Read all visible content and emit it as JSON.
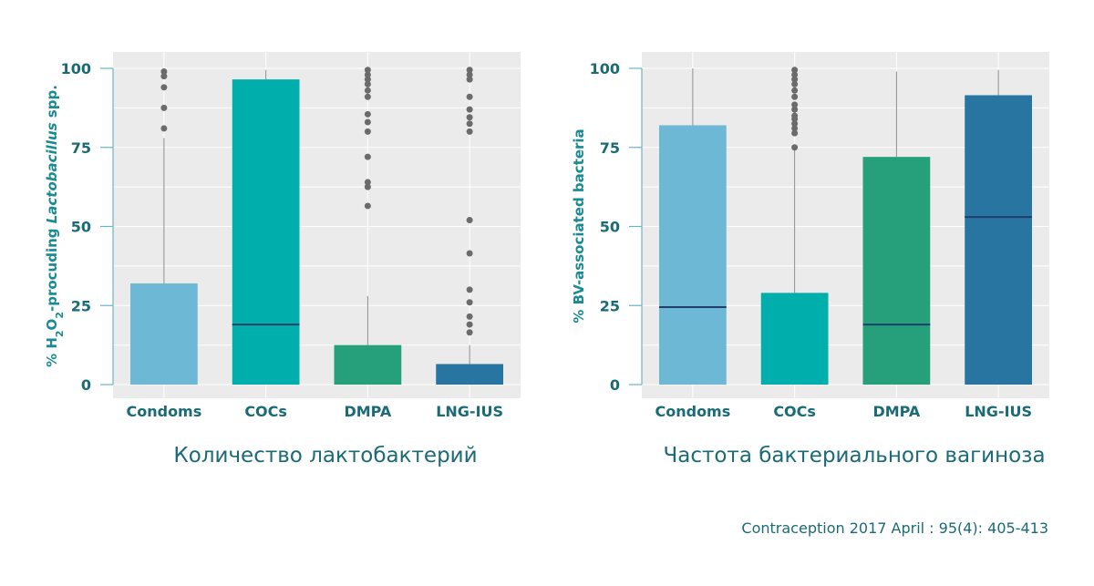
{
  "chart_data": [
    {
      "type": "box",
      "caption": "Количество лактобактерий",
      "ylabel_parts": {
        "prefix": "% H",
        "sub1": "2",
        "mid": "O",
        "sub2": "2",
        "rest": "-procuding ",
        "italic": "Lactobacillus",
        "suffix": " spp."
      },
      "ylim": [
        0,
        100
      ],
      "yticks": [
        0,
        25,
        50,
        75,
        100
      ],
      "grid": true,
      "categories": [
        "Condoms",
        "COCs",
        "DMPA",
        "LNG-IUS"
      ],
      "colors": [
        "#6db8d4",
        "#00aeab",
        "#26a07a",
        "#2775a0"
      ],
      "boxes": [
        {
          "q1": 0,
          "median": 0,
          "q3": 32,
          "whisker_low": 0,
          "whisker_high": 78,
          "outliers": [
            99,
            97.5,
            94,
            87.5,
            81
          ]
        },
        {
          "q1": 0,
          "median": 19,
          "q3": 96.5,
          "whisker_low": 0,
          "whisker_high": 99.5,
          "outliers": []
        },
        {
          "q1": 0,
          "median": 0,
          "q3": 12.5,
          "whisker_low": 0,
          "whisker_high": 28,
          "outliers": [
            99.5,
            98,
            96.5,
            95,
            93,
            91,
            85.5,
            83,
            80,
            72,
            64,
            62.5,
            56.5
          ]
        },
        {
          "q1": 0,
          "median": 0,
          "q3": 6.5,
          "whisker_low": 0,
          "whisker_high": 12.5,
          "outliers": [
            99.5,
            98,
            96.5,
            91,
            87,
            84.5,
            82.5,
            80,
            52,
            41.5,
            30,
            26,
            21.5,
            19,
            16.5
          ]
        }
      ]
    },
    {
      "type": "box",
      "caption": "Частота бактериального вагиноза",
      "ylabel": "% BV-associated bacteria",
      "ylim": [
        0,
        100
      ],
      "yticks": [
        0,
        25,
        50,
        75,
        100
      ],
      "grid": true,
      "categories": [
        "Condoms",
        "COCs",
        "DMPA",
        "LNG-IUS"
      ],
      "colors": [
        "#6db8d4",
        "#00aeab",
        "#26a07a",
        "#2775a0"
      ],
      "boxes": [
        {
          "q1": 0,
          "median": 24.5,
          "q3": 82,
          "whisker_low": 0,
          "whisker_high": 100,
          "outliers": []
        },
        {
          "q1": 0,
          "median": 0,
          "q3": 29,
          "whisker_low": 0,
          "whisker_high": 74.5,
          "outliers": [
            99.5,
            98,
            96.5,
            95,
            93,
            91,
            88.5,
            87,
            85,
            84,
            82.5,
            81,
            79.5,
            75
          ]
        },
        {
          "q1": 0,
          "median": 19,
          "q3": 72,
          "whisker_low": 0,
          "whisker_high": 99,
          "outliers": []
        },
        {
          "q1": 0,
          "median": 53,
          "q3": 91.5,
          "whisker_low": 0,
          "whisker_high": 99.5,
          "outliers": []
        }
      ]
    }
  ],
  "footer": {
    "source": "Contraception 2017 April : 95(4): 405-413"
  },
  "style": {
    "median_color": "#1f3e6e",
    "whisker_color": "#8c8c8c",
    "outlier_color": "#6b6b6b"
  }
}
